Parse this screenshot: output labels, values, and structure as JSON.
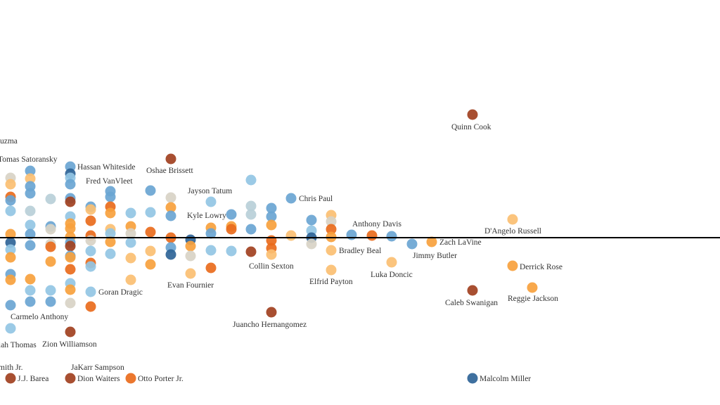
{
  "chart_data": {
    "type": "scatter",
    "title": "",
    "xlabel": "",
    "ylabel": "",
    "xlim": [
      0,
      102.4
    ],
    "ylim": [
      -23.8,
      33.8
    ],
    "grid": false,
    "baseline_y": 0,
    "colors": {
      "db": "#2f6497",
      "mb": "#6aa5d3",
      "lb": "#93c5e4",
      "gb": "#b9cfd8",
      "be": "#d8d3c5",
      "lo": "#fbbf72",
      "or": "#f7a13d",
      "do": "#e96b1c",
      "ru": "#a1401f"
    },
    "points": [
      [
        1.5,
        8.5,
        "be"
      ],
      [
        1.5,
        7.6,
        "lo"
      ],
      [
        1.5,
        5.8,
        "do"
      ],
      [
        1.5,
        5.3,
        "mb"
      ],
      [
        1.5,
        3.8,
        "lb"
      ],
      [
        1.5,
        0.5,
        "or"
      ],
      [
        1.5,
        -0.7,
        "db"
      ],
      [
        1.5,
        -1.7,
        "lb"
      ],
      [
        1.5,
        -2.8,
        "or"
      ],
      [
        1.5,
        -5.2,
        "mb"
      ],
      [
        1.5,
        -6,
        "or"
      ],
      [
        1.5,
        -9.6,
        "mb"
      ],
      [
        1.5,
        -12.9,
        "lb"
      ],
      [
        4.3,
        9.5,
        "mb"
      ],
      [
        4.3,
        8.4,
        "lo"
      ],
      [
        4.3,
        7.3,
        "mb"
      ],
      [
        4.3,
        6.3,
        "mb"
      ],
      [
        4.3,
        3.8,
        "gb"
      ],
      [
        4.3,
        1.8,
        "lb"
      ],
      [
        4.3,
        0.5,
        "mb"
      ],
      [
        4.3,
        -1.1,
        "mb"
      ],
      [
        4.3,
        -5.9,
        "or"
      ],
      [
        4.3,
        -7.5,
        "lb"
      ],
      [
        4.3,
        -9.1,
        "mb"
      ],
      [
        7.2,
        5.5,
        "gb"
      ],
      [
        7.2,
        1.6,
        "mb"
      ],
      [
        7.2,
        1.2,
        "be"
      ],
      [
        7.2,
        -0.9,
        "be"
      ],
      [
        7.2,
        -1.3,
        "do"
      ],
      [
        7.2,
        -3.4,
        "or"
      ],
      [
        7.2,
        -7.5,
        "lb"
      ],
      [
        7.2,
        -9.1,
        "mb"
      ],
      [
        10,
        10.1,
        "mb"
      ],
      [
        10,
        9.1,
        "db"
      ],
      [
        10,
        8.5,
        "lb"
      ],
      [
        10,
        7.6,
        "mb"
      ],
      [
        10,
        5.6,
        "mb"
      ],
      [
        10,
        5.1,
        "ru"
      ],
      [
        10,
        3,
        "lb"
      ],
      [
        10,
        2,
        "or"
      ],
      [
        10,
        1.3,
        "or"
      ],
      [
        10,
        0.1,
        "or"
      ],
      [
        10,
        -0.7,
        "mb"
      ],
      [
        10,
        -1.2,
        "ru"
      ],
      [
        10,
        -2.6,
        "mb"
      ],
      [
        10,
        -2.8,
        "or"
      ],
      [
        10,
        -4.5,
        "do"
      ],
      [
        10,
        -6.5,
        "lb"
      ],
      [
        10,
        -7.4,
        "or"
      ],
      [
        10,
        -9.3,
        "be"
      ],
      [
        10,
        -13.4,
        "ru"
      ],
      [
        12.9,
        4.4,
        "mb"
      ],
      [
        12.9,
        4,
        "lo"
      ],
      [
        12.9,
        2.4,
        "do"
      ],
      [
        12.9,
        0.3,
        "do"
      ],
      [
        12.9,
        -0.4,
        "be"
      ],
      [
        12.9,
        -1.9,
        "lb"
      ],
      [
        12.9,
        -3.6,
        "do"
      ],
      [
        12.9,
        -4.1,
        "lb"
      ],
      [
        12.9,
        -7.7,
        "lb"
      ],
      [
        12.9,
        -9.8,
        "do"
      ],
      [
        15.7,
        6.6,
        "mb"
      ],
      [
        15.7,
        5.8,
        "mb"
      ],
      [
        15.7,
        4.4,
        "do"
      ],
      [
        15.7,
        3.5,
        "or"
      ],
      [
        15.7,
        1.2,
        "lo"
      ],
      [
        15.7,
        0.6,
        "lb"
      ],
      [
        15.7,
        -0.6,
        "or"
      ],
      [
        15.7,
        -2.3,
        "lb"
      ],
      [
        18.6,
        3.5,
        "lb"
      ],
      [
        18.6,
        1.6,
        "or"
      ],
      [
        18.6,
        0.6,
        "be"
      ],
      [
        18.6,
        -0.7,
        "lb"
      ],
      [
        18.6,
        -2.9,
        "lo"
      ],
      [
        18.6,
        -6,
        "lo"
      ],
      [
        21.4,
        6.7,
        "mb"
      ],
      [
        21.4,
        3.6,
        "lb"
      ],
      [
        21.4,
        0.8,
        "do"
      ],
      [
        21.4,
        -1.9,
        "lo"
      ],
      [
        21.4,
        -3.8,
        "or"
      ],
      [
        24.3,
        11.2,
        "ru"
      ],
      [
        24.3,
        5.7,
        "be"
      ],
      [
        24.3,
        4.3,
        "or"
      ],
      [
        24.3,
        3.1,
        "mb"
      ],
      [
        24.3,
        0,
        "do"
      ],
      [
        24.3,
        -1.4,
        "mb"
      ],
      [
        24.3,
        -2.4,
        "db"
      ],
      [
        27.1,
        -0.3,
        "db"
      ],
      [
        27.1,
        -1.2,
        "or"
      ],
      [
        27.1,
        -2.6,
        "be"
      ],
      [
        27.1,
        -5.1,
        "lo"
      ],
      [
        30,
        5.1,
        "lb"
      ],
      [
        30,
        1.4,
        "or"
      ],
      [
        30,
        0.6,
        "mb"
      ],
      [
        30,
        -1.8,
        "lb"
      ],
      [
        30,
        -4.3,
        "do"
      ],
      [
        32.9,
        3.3,
        "mb"
      ],
      [
        32.9,
        1.6,
        "or"
      ],
      [
        32.9,
        1.2,
        "do"
      ],
      [
        32.9,
        -1.9,
        "lb"
      ],
      [
        35.7,
        8.2,
        "lb"
      ],
      [
        35.7,
        4.5,
        "gb"
      ],
      [
        35.7,
        3.3,
        "gb"
      ],
      [
        35.7,
        1.2,
        "mb"
      ],
      [
        35.7,
        -2,
        "ru"
      ],
      [
        38.6,
        4.2,
        "mb"
      ],
      [
        38.6,
        3,
        "mb"
      ],
      [
        38.6,
        1.8,
        "or"
      ],
      [
        38.6,
        -0.4,
        "do"
      ],
      [
        38.6,
        -1.5,
        "do"
      ],
      [
        38.6,
        -2.4,
        "lo"
      ],
      [
        38.6,
        -10.6,
        "ru"
      ],
      [
        41.4,
        5.6,
        "mb"
      ],
      [
        41.4,
        0.3,
        "lo"
      ],
      [
        44.3,
        2.5,
        "mb"
      ],
      [
        44.3,
        1,
        "lb"
      ],
      [
        44.3,
        0,
        "db"
      ],
      [
        44.3,
        -0.9,
        "be"
      ],
      [
        47.1,
        3.2,
        "lo"
      ],
      [
        47.1,
        2.3,
        "be"
      ],
      [
        47.1,
        1.2,
        "do"
      ],
      [
        47.1,
        0.1,
        "or"
      ],
      [
        47.1,
        -1.8,
        "lo"
      ],
      [
        47.1,
        -4.6,
        "lo"
      ],
      [
        50,
        0.4,
        "mb"
      ],
      [
        52.9,
        0.3,
        "do"
      ],
      [
        55.7,
        0.2,
        "mb"
      ],
      [
        55.7,
        -3.5,
        "lo"
      ],
      [
        58.6,
        -0.9,
        "mb"
      ],
      [
        61.4,
        -0.6,
        "or"
      ],
      [
        67.2,
        17.5,
        "ru"
      ],
      [
        67.2,
        -7.5,
        "ru"
      ],
      [
        67.2,
        -20,
        "db"
      ],
      [
        72.9,
        2.6,
        "lo"
      ],
      [
        72.9,
        -4,
        "or"
      ],
      [
        75.7,
        -7.1,
        "or"
      ],
      [
        1.5,
        -20,
        "ru"
      ],
      [
        10,
        -20,
        "ru"
      ],
      [
        18.6,
        -20,
        "do"
      ]
    ],
    "annotations": [
      "uzma",
      "Tomas Satoransky",
      "Hassan Whiteside",
      "Fred VanVleet",
      "Oshae Brissett",
      "Jayson Tatum",
      "Kyle Lowry",
      "Chris Paul",
      "Anthony Davis",
      "D'Angelo Russell",
      "Zach LaVine",
      "Bradley Beal",
      "Jimmy Butler",
      "Collin Sexton",
      "Derrick Rose",
      "Luka Doncic",
      "Elfrid Payton",
      "Evan Fournier",
      "Goran Dragic",
      "Caleb Swanigan",
      "Reggie Jackson",
      "Carmelo Anthony",
      "Juancho Hernangomez",
      "iah Thomas",
      "Zion Williamson",
      "mith Jr.",
      "JaKarr Sampson",
      "J.J. Barea",
      "Dion Waiters",
      "Otto Porter Jr.",
      "Quinn Cook",
      "Malcolm Miller"
    ]
  }
}
